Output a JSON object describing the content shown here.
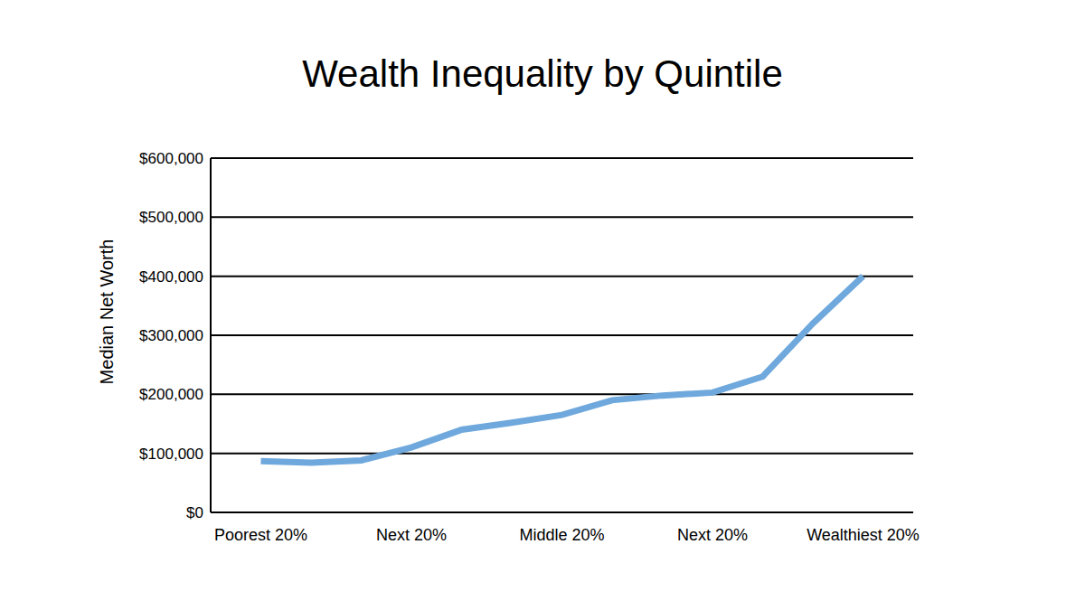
{
  "chart_data": {
    "type": "line",
    "title": "Wealth Inequality by Quintile",
    "y_label": "Median Net Worth",
    "categories": [
      null,
      "Poorest 20%",
      null,
      null,
      "Next 20%",
      null,
      null,
      "Middle 20%",
      null,
      null,
      "Next 20%",
      null,
      null,
      "Wealthiest 20%",
      null
    ],
    "values": [
      null,
      87000,
      84000,
      88000,
      110000,
      140000,
      152000,
      165000,
      190000,
      198000,
      203000,
      230000,
      320000,
      400000,
      null
    ],
    "color": "#6fa8dc",
    "ylim": [
      0,
      600000
    ],
    "yticks": [
      {
        "value": 0,
        "label": "$0"
      },
      {
        "value": 100000,
        "label": "$100,000"
      },
      {
        "value": 200000,
        "label": "$200,000"
      },
      {
        "value": 300000,
        "label": "$300,000"
      },
      {
        "value": 400000,
        "label": "$400,000"
      },
      {
        "value": 500000,
        "label": "$500,000"
      },
      {
        "value": 600000,
        "label": "$600,000"
      }
    ],
    "grid": true
  }
}
